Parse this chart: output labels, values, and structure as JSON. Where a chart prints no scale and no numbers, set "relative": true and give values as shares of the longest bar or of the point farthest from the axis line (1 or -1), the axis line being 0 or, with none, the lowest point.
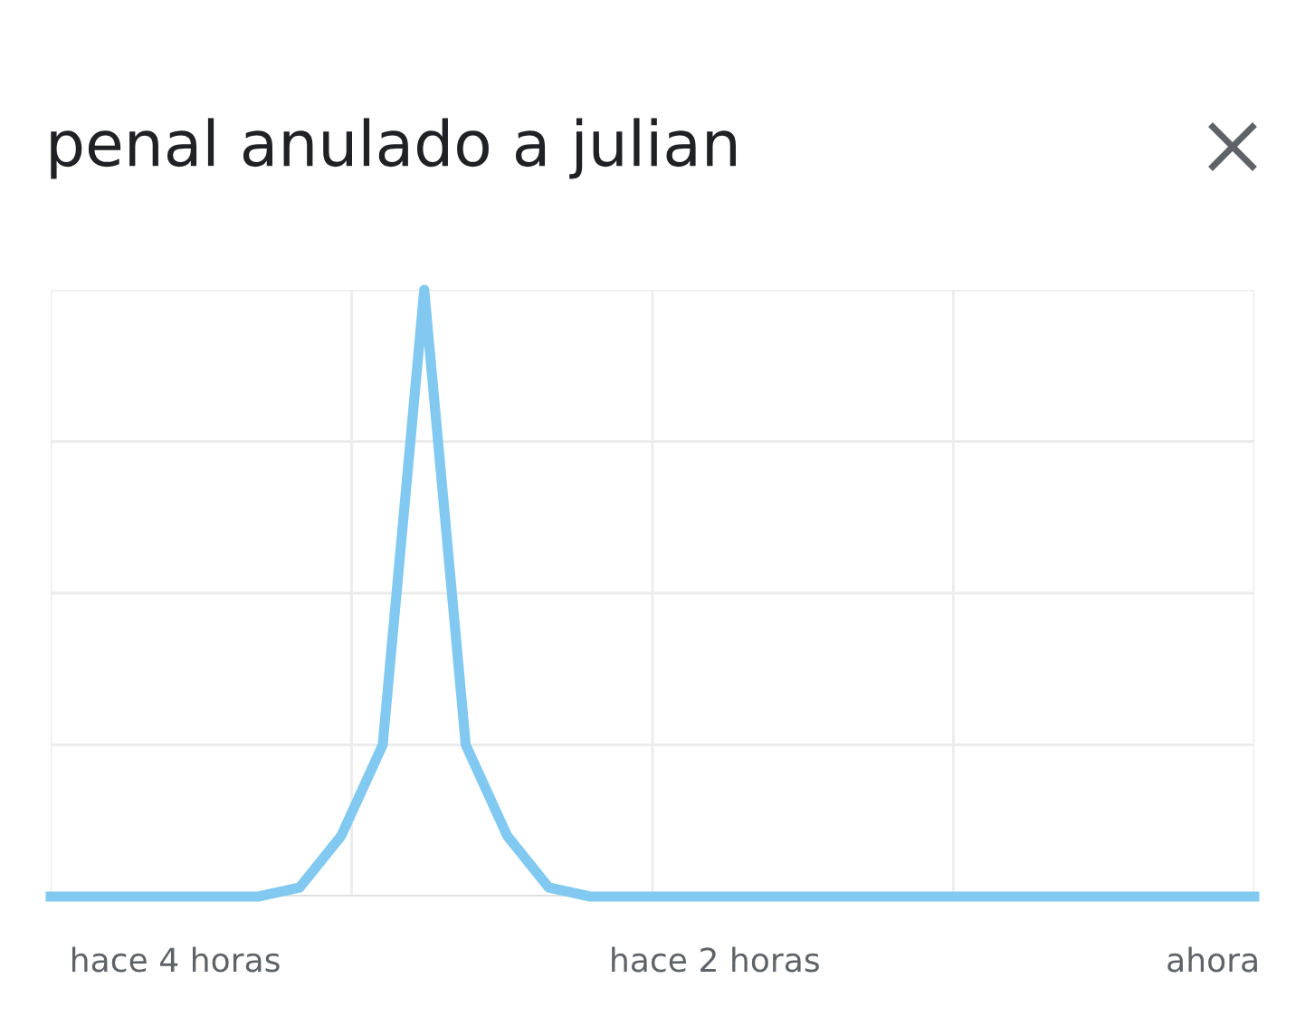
{
  "chart_data": {
    "type": "line",
    "title": "penal anulado a julian",
    "relative": true,
    "grid": true,
    "marker": "none",
    "line_style": "solid",
    "categories": [
      null,
      null,
      null,
      "hace 4 horas",
      null,
      null,
      null,
      null,
      null,
      null,
      null,
      null,
      null,
      null,
      null,
      null,
      "hace 2 horas",
      null,
      null,
      null,
      null,
      null,
      null,
      null,
      null,
      null,
      null,
      null,
      "ahora",
      null
    ],
    "series": [
      {
        "color": "#81c9f0",
        "values": [
          0,
          0,
          0,
          0,
          0,
          0,
          0.015,
          0.1,
          0.25,
          1,
          0.25,
          0.1,
          0.015,
          0,
          0,
          0,
          0,
          0,
          0,
          0,
          0,
          0,
          0,
          0,
          0,
          0,
          0,
          0,
          0,
          0
        ]
      }
    ]
  }
}
